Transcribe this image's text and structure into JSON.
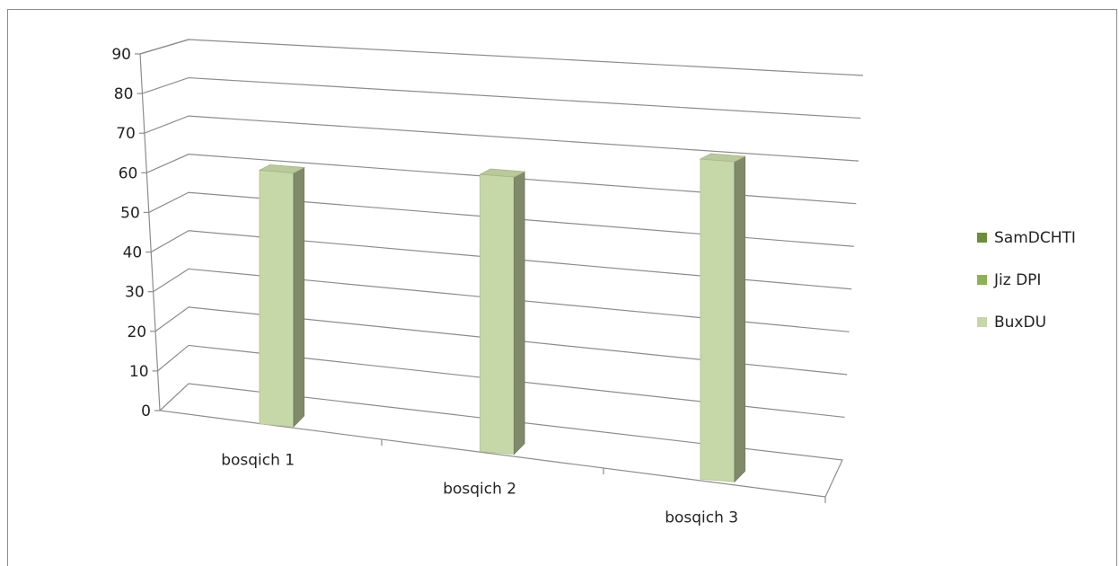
{
  "chart_data": {
    "type": "bar",
    "title": "",
    "xlabel": "",
    "ylabel": "",
    "categories": [
      "bosqich 1",
      "bosqich 2",
      "bosqich 3"
    ],
    "series": [
      {
        "name": "SamDCHTI",
        "values": [
          0,
          0,
          0
        ],
        "color": "#6b8e3a"
      },
      {
        "name": "Jiz DPI",
        "values": [
          0,
          0,
          0
        ],
        "color": "#8cb255"
      },
      {
        "name": "BuxDU",
        "values": [
          65,
          71,
          82
        ],
        "color": "#c6d7a8"
      }
    ],
    "ylim": [
      0,
      90
    ],
    "yticks": [
      0,
      10,
      20,
      30,
      40,
      50,
      60,
      70,
      80,
      90
    ],
    "grid": true,
    "three_d": true,
    "legend_position": "right"
  }
}
